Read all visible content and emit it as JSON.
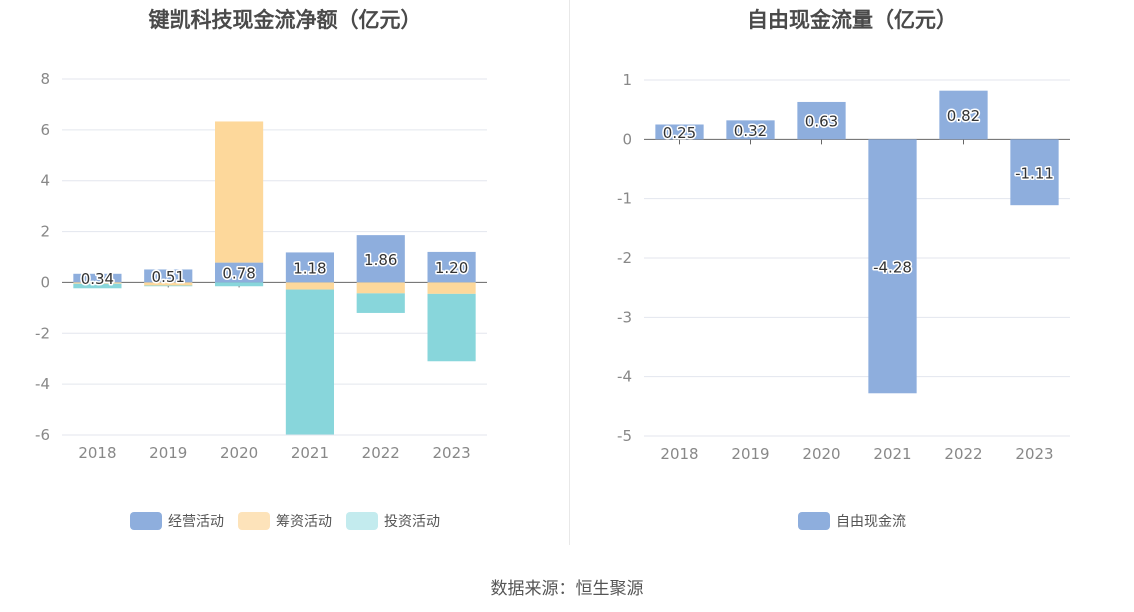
{
  "source": "数据来源：恒生聚源",
  "colors": {
    "operating": "#8eaedd",
    "financing": "#fdd89b",
    "investing": "#88d6db",
    "fcf": "#8eaedd"
  },
  "chart_data": [
    {
      "type": "bar",
      "stacked": true,
      "title": "键凯科技现金流净额（亿元）",
      "categories": [
        "2018",
        "2019",
        "2020",
        "2021",
        "2022",
        "2023"
      ],
      "ylim": [
        -6,
        8
      ],
      "yticks": [
        "8",
        "6",
        "4",
        "2",
        "0",
        "-2",
        "-4",
        "-6"
      ],
      "grid": true,
      "legend_position": "bottom",
      "series": [
        {
          "name": "经营活动",
          "color": "#8eaedd",
          "values": [
            0.34,
            0.51,
            0.78,
            1.18,
            1.86,
            1.2
          ],
          "labels": [
            "0.34",
            "0.51",
            "0.78",
            "1.18",
            "1.86",
            "1.20"
          ]
        },
        {
          "name": "筹资活动",
          "color": "#fdd89b",
          "values": [
            -0.05,
            -0.12,
            5.55,
            -0.28,
            -0.43,
            -0.45
          ]
        },
        {
          "name": "投资活动",
          "color": "#88d6db",
          "values": [
            -0.18,
            -0.03,
            -0.15,
            -5.7,
            -0.77,
            -2.65
          ]
        }
      ],
      "legend": [
        {
          "name": "经营活动",
          "color": "#8eaedd"
        },
        {
          "name": "筹资活动",
          "color": "#fde3ba"
        },
        {
          "name": "投资活动",
          "color": "#c3ebee"
        }
      ]
    },
    {
      "type": "bar",
      "title": "自由现金流量（亿元）",
      "categories": [
        "2018",
        "2019",
        "2020",
        "2021",
        "2022",
        "2023"
      ],
      "ylim": [
        -5,
        1
      ],
      "yticks": [
        "1",
        "0",
        "-1",
        "-2",
        "-3",
        "-4",
        "-5"
      ],
      "grid": true,
      "legend_position": "bottom",
      "series": [
        {
          "name": "自由现金流",
          "color": "#8eaedd",
          "values": [
            0.25,
            0.32,
            0.63,
            -4.28,
            0.82,
            -1.11
          ],
          "labels": [
            "0.25",
            "0.32",
            "0.63",
            "-4.28",
            "0.82",
            "-1.11"
          ]
        }
      ],
      "legend": [
        {
          "name": "自由现金流",
          "color": "#8eaedd"
        }
      ]
    }
  ]
}
